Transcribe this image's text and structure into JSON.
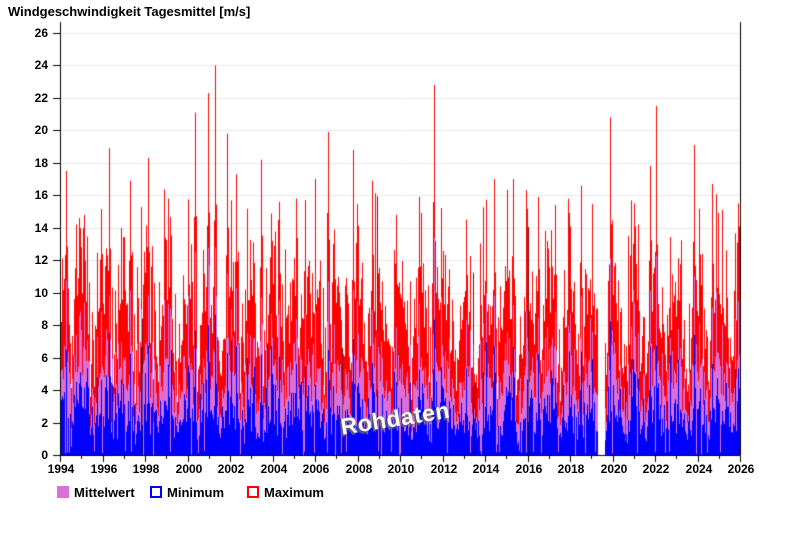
{
  "chart_data": {
    "type": "bar",
    "title": "Windgeschwindigkeit Tagesmittel [m/s]",
    "xlabel": "",
    "ylabel": "",
    "x_range": [
      1994,
      2026
    ],
    "ylim": [
      0,
      26
    ],
    "y_ticks": [
      0,
      2,
      4,
      6,
      8,
      10,
      12,
      14,
      16,
      18,
      20,
      22,
      24,
      26
    ],
    "x_ticks_major": [
      1994,
      1996,
      1998,
      2000,
      2002,
      2004,
      2006,
      2008,
      2010,
      2012,
      2014,
      2016,
      2018,
      2020,
      2022,
      2024,
      2026
    ],
    "x_minor_step_years": 1,
    "grid": "horizontal-light",
    "legend_position": "bottom-left",
    "series": [
      {
        "name": "Mittelwert",
        "role": "mean",
        "color": "#DA70D6",
        "typical_range_ms": [
          3,
          9
        ]
      },
      {
        "name": "Minimum",
        "role": "min",
        "color": "#0000FF",
        "typical_range_ms": [
          0,
          7
        ]
      },
      {
        "name": "Maximum",
        "role": "max",
        "color": "#FF0000",
        "typical_range_ms": [
          5,
          16
        ]
      }
    ],
    "data_gap_years": [
      2019.28,
      2019.62
    ],
    "notable_maxima": [
      {
        "year": 1994.3,
        "value": 17.5
      },
      {
        "year": 1994.75,
        "value": 14.2
      },
      {
        "year": 1996.3,
        "value": 18.9
      },
      {
        "year": 1997.3,
        "value": 16.9
      },
      {
        "year": 1998.15,
        "value": 18.3
      },
      {
        "year": 1999.1,
        "value": 15.8
      },
      {
        "year": 2000.35,
        "value": 21.1
      },
      {
        "year": 2000.95,
        "value": 22.3
      },
      {
        "year": 2001.3,
        "value": 24.0
      },
      {
        "year": 2001.85,
        "value": 19.8
      },
      {
        "year": 2002.3,
        "value": 17.3
      },
      {
        "year": 2003.45,
        "value": 18.2
      },
      {
        "year": 2004.3,
        "value": 15.6
      },
      {
        "year": 2005.1,
        "value": 15.8
      },
      {
        "year": 2005.55,
        "value": 15.7
      },
      {
        "year": 2006.6,
        "value": 19.9
      },
      {
        "year": 2007.8,
        "value": 18.8
      },
      {
        "year": 2008.7,
        "value": 16.9
      },
      {
        "year": 2009.8,
        "value": 14.8
      },
      {
        "year": 2010.9,
        "value": 15.9
      },
      {
        "year": 2011.6,
        "value": 22.8
      },
      {
        "year": 2013.1,
        "value": 14.5
      },
      {
        "year": 2014.4,
        "value": 17.0
      },
      {
        "year": 2015.3,
        "value": 17.0
      },
      {
        "year": 2016.5,
        "value": 15.9
      },
      {
        "year": 2017.3,
        "value": 15.4
      },
      {
        "year": 2018.5,
        "value": 16.6
      },
      {
        "year": 2019.9,
        "value": 20.8
      },
      {
        "year": 2021.0,
        "value": 15.5
      },
      {
        "year": 2021.76,
        "value": 17.8
      },
      {
        "year": 2022.05,
        "value": 21.5
      },
      {
        "year": 2023.84,
        "value": 19.1
      },
      {
        "year": 2024.7,
        "value": 16.7
      },
      {
        "year": 2025.9,
        "value": 15.5
      }
    ],
    "seasonality": {
      "winter_peak": true,
      "base_ms": 6.8,
      "amplitude_ms": 2.6
    },
    "mean_to_max_ratio": [
      0.4,
      0.64
    ],
    "min_to_mean_ratio": [
      0.3,
      0.8
    ],
    "generation_seed": 7,
    "columns": 680
  },
  "legend": {
    "items": [
      {
        "label": "Mittelwert",
        "fill": "#DA70D6",
        "border": "#DA70D6"
      },
      {
        "label": "Minimum",
        "fill": "#FFFFFF",
        "border": "#0000FF"
      },
      {
        "label": "Maximum",
        "fill": "#FFFFFF",
        "border": "#FF0000"
      }
    ]
  },
  "watermark": {
    "text": "Rohdaten",
    "angle_deg": -9
  },
  "colors": {
    "background": "#FFFFFF",
    "grid": "#E8E8E8",
    "axis": "#000000"
  }
}
